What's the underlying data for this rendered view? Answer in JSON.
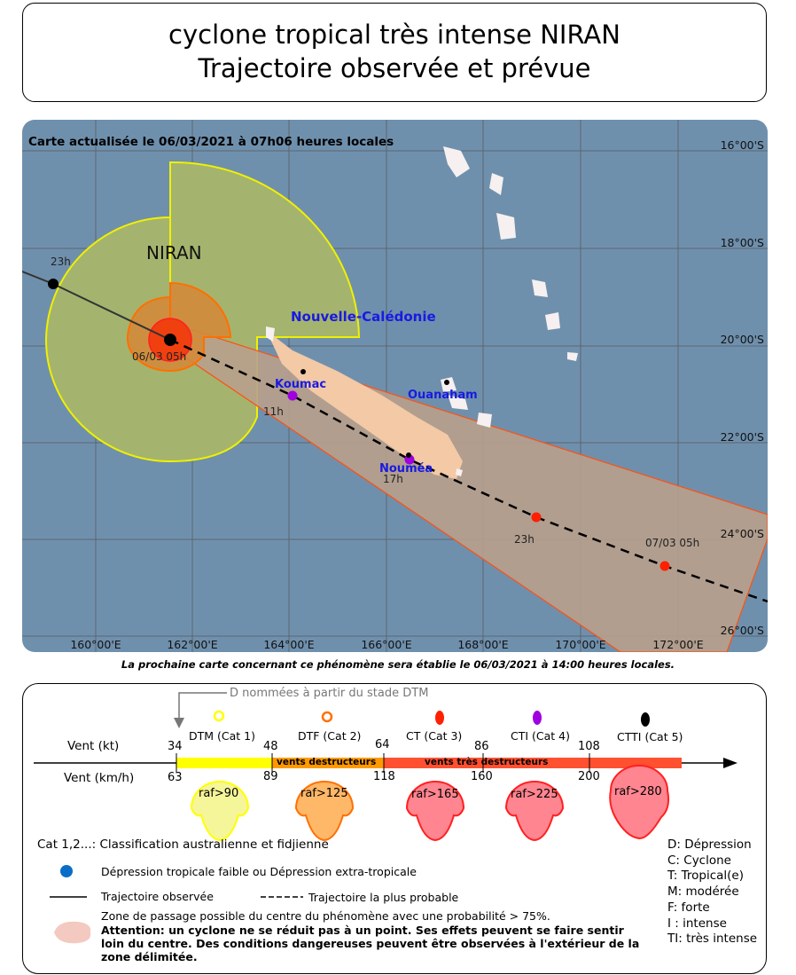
{
  "title": {
    "line1": "cyclone tropical très intense NIRAN",
    "line2": "Trajectoire observée et prévue"
  },
  "map": {
    "update_text": "Carte actualisée le 06/03/2021 à 07h06 heures locales",
    "storm_name": "NIRAN",
    "region_label": "Nouvelle-Calédonie",
    "places": [
      "Koumac",
      "Ouanaham",
      "Nouméa"
    ],
    "lat_labels": [
      "16°00'S",
      "18°00'S",
      "20°00'S",
      "22°00'S",
      "24°00'S",
      "26°00'S"
    ],
    "lon_labels": [
      "160°00'E",
      "162°00'E",
      "164°00'E",
      "166°00'E",
      "168°00'E",
      "170°00'E",
      "172°00'E"
    ],
    "track_labels": {
      "past": "23h",
      "current": "06/03 05h",
      "f1": "11h",
      "f2": "17h",
      "f3": "23h",
      "f4": "07/03 05h"
    },
    "colors": {
      "sea": "#6f90ad",
      "cone": "#b8a08c",
      "yellow_zone": "#a4b46e",
      "orange_zone": "#d38a3a",
      "red_zone": "#f04010",
      "cat4": "#a000e0",
      "cat3": "#ff2000"
    }
  },
  "next_map_note": "La prochaine carte concernant ce phénomène sera établie le 06/03/2021 à 14:00 heures locales.",
  "legend": {
    "naming_note": "D nommées à partir du stade DTM",
    "wind_kt_label": "Vent (kt)",
    "wind_kmh_label": "Vent (km/h)",
    "kt_ticks": [
      "34",
      "48",
      "64",
      "86",
      "108"
    ],
    "kmh_ticks": [
      "63",
      "89",
      "118",
      "160",
      "200"
    ],
    "categories": [
      {
        "name": "DTM (Cat 1)",
        "gust": "raf>90",
        "color": "#ffff00"
      },
      {
        "name": "DTF (Cat 2)",
        "gust": "raf>125",
        "color": "#ff8000"
      },
      {
        "name": "CT (Cat 3)",
        "gust": "raf>165",
        "color": "#ff2000"
      },
      {
        "name": "CTI (Cat 4)",
        "gust": "raf>225",
        "color": "#a000e0"
      },
      {
        "name": "CTTI (Cat 5)",
        "gust": "raf>280",
        "color": "#000000"
      }
    ],
    "band_destructive": "vents destructeurs",
    "band_very_destructive": "vents très destructeurs",
    "cat_note": "Cat 1,2...: Classification australienne et fidjienne",
    "depression": "Dépression tropicale faible ou Dépression extra-tropicale",
    "observed": "Trajectoire observée",
    "probable": "Trajectoire la plus probable",
    "zone_text": "Zone de passage possible du centre du phénomène avec une probabilité > 75%.",
    "warning": "Attention: un cyclone ne se réduit pas à un point. Ses effets peuvent se faire sentir loin du centre. Des conditions dangereuses peuvent être observées à l'extérieur de la zone délimitée.",
    "abbreviations": [
      "D: Dépression",
      "C: Cyclone",
      "T: Tropical(e)",
      "M: modérée",
      "F: forte",
      "I : intense",
      "TI: très intense"
    ]
  }
}
